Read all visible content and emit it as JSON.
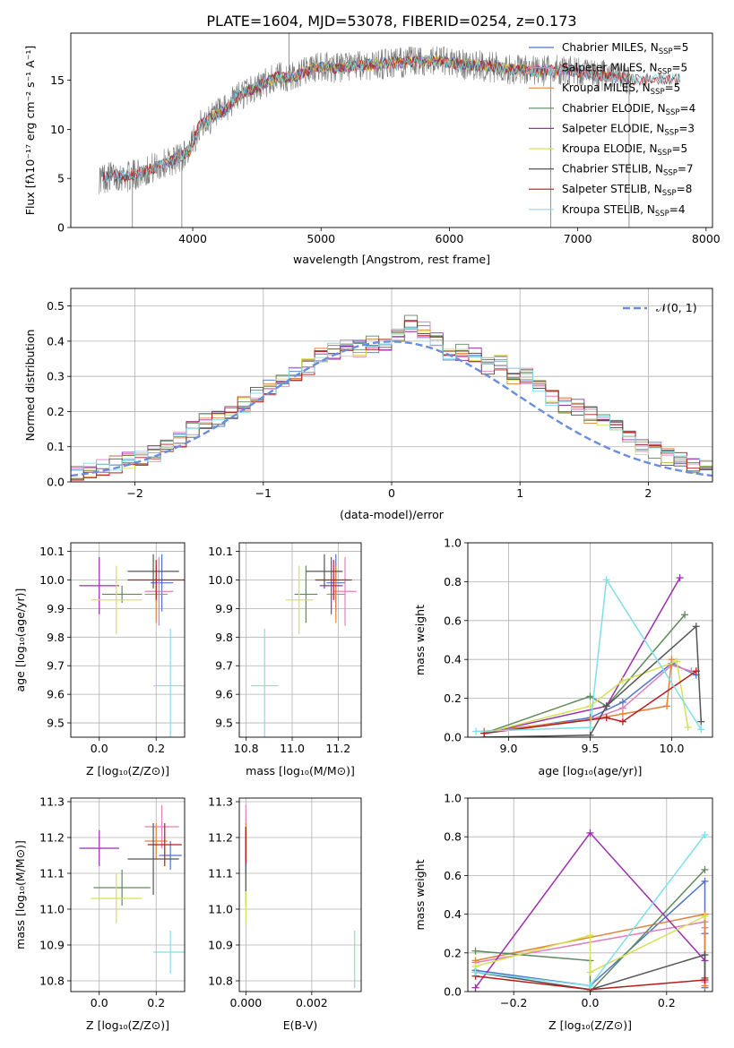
{
  "figure": {
    "title": "PLATE=1604, MJD=53078, FIBERID=0254, z=0.173"
  },
  "chart_data": [
    {
      "id": "spectrum",
      "type": "line",
      "xlabel": "wavelength [Angstrom, rest frame]",
      "ylabel": "Flux [fλ10⁻¹⁷ erg cm⁻² s⁻¹ A⁻¹]",
      "xlim": [
        3050,
        8050
      ],
      "ylim": [
        0,
        19.8
      ],
      "xticks": [
        4000,
        5000,
        6000,
        7000,
        8000
      ],
      "yticks": [
        0,
        5,
        10,
        15
      ],
      "grid": false,
      "legend_position": "top-right",
      "observed_envelope": {
        "x": [
          3270,
          3400,
          3500,
          3600,
          3700,
          3800,
          3900,
          3980,
          4050,
          4150,
          4250,
          4350,
          4450,
          4550,
          4650,
          4750,
          4850,
          4950,
          5050,
          5150,
          5300,
          5500,
          5700,
          5900,
          6100,
          6300,
          6500,
          6700,
          6900,
          7100,
          7300,
          7420
        ],
        "y": [
          5.0,
          5.3,
          5.2,
          5.6,
          6.1,
          6.6,
          7.2,
          7.9,
          10.3,
          11.2,
          11.9,
          13.4,
          14.0,
          14.6,
          15.3,
          15.2,
          15.7,
          16.3,
          16.4,
          16.2,
          16.5,
          16.7,
          16.9,
          17.0,
          16.6,
          16.4,
          16.1,
          15.9,
          16.1,
          15.6,
          15.3,
          15.1
        ]
      },
      "series": [
        {
          "name": "Chabrier MILES, N_SSP=5",
          "label_main": "Chabrier MILES, N",
          "label_sub": "SSP",
          "label_tail": "=5",
          "color": "#4f74c9",
          "x_range": [
            3300,
            7400
          ]
        },
        {
          "name": "Salpeter MILES, N_SSP=5",
          "label_main": "Salpeter MILES, N",
          "label_sub": "SSP",
          "label_tail": "=5",
          "color": "#e07fbd",
          "x_range": [
            3520,
            7400
          ]
        },
        {
          "name": "Kroupa MILES, N_SSP=5",
          "label_main": "Kroupa MILES, N",
          "label_sub": "SSP",
          "label_tail": "=5",
          "color": "#e0843c",
          "x_range": [
            3520,
            7400
          ]
        },
        {
          "name": "Chabrier ELODIE, N_SSP=4",
          "label_main": "Chabrier ELODIE, N",
          "label_sub": "SSP",
          "label_tail": "=4",
          "color": "#5f8a5b",
          "x_range": [
            3900,
            6800
          ]
        },
        {
          "name": "Salpeter ELODIE, N_SSP=3",
          "label_main": "Salpeter ELODIE, N",
          "label_sub": "SSP",
          "label_tail": "=3",
          "color": "#9b2fae",
          "x_range": [
            3900,
            6800
          ]
        },
        {
          "name": "Kroupa ELODIE, N_SSP=5",
          "label_main": "Kroupa ELODIE, N",
          "label_sub": "SSP",
          "label_tail": "=5",
          "color": "#d4e157",
          "x_range": [
            3900,
            6800
          ]
        },
        {
          "name": "Chabrier STELIB, N_SSP=7",
          "label_main": "Chabrier STELIB, N",
          "label_sub": "SSP",
          "label_tail": "=7",
          "color": "#555555",
          "x_range": [
            3300,
            7800
          ]
        },
        {
          "name": "Salpeter STELIB, N_SSP=8",
          "label_main": "Salpeter STELIB, N",
          "label_sub": "SSP",
          "label_tail": "=8",
          "color": "#b71c1c",
          "x_range": [
            3300,
            7800
          ]
        },
        {
          "name": "Kroupa STELIB, N_SSP=4",
          "label_main": "Kroupa STELIB, N",
          "label_sub": "SSP",
          "label_tail": "=4",
          "color": "#80deea",
          "x_range": [
            3300,
            7800
          ]
        }
      ]
    },
    {
      "id": "residuals",
      "type": "bar",
      "xlabel": "(data-model)/error",
      "ylabel": "Normed distribution",
      "xlim": [
        -2.5,
        2.5
      ],
      "ylim": [
        0,
        0.55
      ],
      "xticks": [
        -2,
        -1,
        0,
        1,
        2
      ],
      "yticks": [
        0.0,
        0.1,
        0.2,
        0.3,
        0.4,
        0.5
      ],
      "grid": true,
      "legend_position": "top-right",
      "reference": {
        "name": "𝒩(0, 1)",
        "color": "#6a8de0",
        "mu": 0,
        "sigma": 1
      },
      "bin_edges_start": -2.5,
      "bin_width": 0.1,
      "approx_values": [
        0.02,
        0.03,
        0.04,
        0.05,
        0.06,
        0.07,
        0.08,
        0.1,
        0.12,
        0.15,
        0.17,
        0.18,
        0.2,
        0.22,
        0.25,
        0.27,
        0.29,
        0.31,
        0.33,
        0.36,
        0.37,
        0.38,
        0.38,
        0.39,
        0.39,
        0.42,
        0.45,
        0.43,
        0.4,
        0.37,
        0.37,
        0.36,
        0.33,
        0.34,
        0.3,
        0.3,
        0.27,
        0.24,
        0.22,
        0.21,
        0.19,
        0.17,
        0.15,
        0.13,
        0.1,
        0.09,
        0.07,
        0.06,
        0.05,
        0.04
      ]
    },
    {
      "id": "age_vs_Z",
      "type": "scatter",
      "xlabel": "Z [log₁₀(Z/Z⊙)]",
      "ylabel": "age  [log₁₀(age/yr)]",
      "xlim": [
        -0.1,
        0.3
      ],
      "ylim": [
        9.45,
        10.13
      ],
      "xticks": [
        0.0,
        0.2
      ],
      "yticks": [
        9.5,
        9.6,
        9.7,
        9.8,
        9.9,
        10.0,
        10.1
      ],
      "grid": true,
      "points": [
        {
          "x": 0.22,
          "y": 9.99,
          "dx": 0.04,
          "dy": 0.1,
          "color": "#4f74c9"
        },
        {
          "x": 0.21,
          "y": 9.96,
          "dx": 0.05,
          "dy": 0.12,
          "color": "#e07fbd"
        },
        {
          "x": 0.2,
          "y": 9.95,
          "dx": 0.04,
          "dy": 0.1,
          "color": "#e0843c"
        },
        {
          "x": 0.08,
          "y": 9.95,
          "dx": 0.07,
          "dy": 0.03,
          "color": "#5f8a5b"
        },
        {
          "x": 0.0,
          "y": 9.98,
          "dx": 0.07,
          "dy": 0.1,
          "color": "#9b2fae"
        },
        {
          "x": 0.06,
          "y": 9.93,
          "dx": 0.09,
          "dy": 0.12,
          "color": "#d4e157"
        },
        {
          "x": 0.19,
          "y": 10.03,
          "dx": 0.09,
          "dy": 0.06,
          "color": "#555555"
        },
        {
          "x": 0.2,
          "y": 10.0,
          "dx": 0.1,
          "dy": 0.07,
          "color": "#b71c1c"
        },
        {
          "x": 0.25,
          "y": 9.63,
          "dx": 0.06,
          "dy": 0.2,
          "color": "#80deea"
        }
      ]
    },
    {
      "id": "age_vs_mass",
      "type": "scatter",
      "xlabel": "mass [log₁₀(M/M⊙)]",
      "ylabel": "",
      "xlim": [
        10.77,
        11.3
      ],
      "ylim": [
        9.45,
        10.13
      ],
      "xticks": [
        10.8,
        11.0,
        11.2
      ],
      "yticks": [
        9.5,
        9.6,
        9.7,
        9.8,
        9.9,
        10.0,
        10.1
      ],
      "grid": true,
      "points": [
        {
          "x": 11.19,
          "y": 9.99,
          "dx": 0.04,
          "dy": 0.1,
          "color": "#4f74c9"
        },
        {
          "x": 11.23,
          "y": 9.96,
          "dx": 0.05,
          "dy": 0.12,
          "color": "#e07fbd"
        },
        {
          "x": 11.19,
          "y": 9.95,
          "dx": 0.04,
          "dy": 0.1,
          "color": "#e0843c"
        },
        {
          "x": 11.06,
          "y": 9.95,
          "dx": 0.05,
          "dy": 0.1,
          "color": "#5f8a5b"
        },
        {
          "x": 11.17,
          "y": 9.98,
          "dx": 0.05,
          "dy": 0.1,
          "color": "#9b2fae"
        },
        {
          "x": 11.03,
          "y": 9.93,
          "dx": 0.06,
          "dy": 0.12,
          "color": "#d4e157"
        },
        {
          "x": 11.14,
          "y": 10.03,
          "dx": 0.08,
          "dy": 0.06,
          "color": "#555555"
        },
        {
          "x": 11.18,
          "y": 10.0,
          "dx": 0.08,
          "dy": 0.07,
          "color": "#b71c1c"
        },
        {
          "x": 10.88,
          "y": 9.63,
          "dx": 0.06,
          "dy": 0.2,
          "color": "#80deea"
        }
      ]
    },
    {
      "id": "weight_vs_age",
      "type": "line",
      "xlabel": "age  [log₁₀(age/yr)]",
      "ylabel": "mass weight",
      "xlim": [
        8.75,
        10.25
      ],
      "ylim": [
        0,
        1.0
      ],
      "xticks": [
        9.0,
        9.5,
        10.0
      ],
      "yticks": [
        0.0,
        0.2,
        0.4,
        0.6,
        0.8,
        1.0
      ],
      "grid": true,
      "series": [
        {
          "color": "#4f74c9",
          "x": [
            8.85,
            9.5,
            9.7,
            10.0,
            10.15
          ],
          "y": [
            0.02,
            0.1,
            0.18,
            0.38,
            0.32
          ]
        },
        {
          "color": "#e07fbd",
          "x": [
            8.85,
            9.5,
            9.7,
            10.0,
            10.12
          ],
          "y": [
            0.03,
            0.09,
            0.15,
            0.37,
            0.34
          ]
        },
        {
          "color": "#e0843c",
          "x": [
            8.85,
            9.5,
            9.7,
            9.97,
            10.0
          ],
          "y": [
            0.03,
            0.09,
            0.12,
            0.16,
            0.4
          ]
        },
        {
          "color": "#5f8a5b",
          "x": [
            8.85,
            9.5,
            9.6,
            10.08
          ],
          "y": [
            0.02,
            0.21,
            0.16,
            0.63
          ]
        },
        {
          "color": "#9b2fae",
          "x": [
            8.85,
            9.6,
            10.05
          ],
          "y": [
            0.02,
            0.16,
            0.82
          ]
        },
        {
          "color": "#d4e157",
          "x": [
            8.85,
            9.5,
            9.7,
            10.03,
            10.1
          ],
          "y": [
            0.02,
            0.16,
            0.29,
            0.39,
            0.05
          ]
        },
        {
          "color": "#555555",
          "x": [
            8.85,
            9.5,
            9.6,
            10.15,
            10.18
          ],
          "y": [
            0.0,
            0.01,
            0.16,
            0.57,
            0.08
          ]
        },
        {
          "color": "#b71c1c",
          "x": [
            8.85,
            9.6,
            9.7,
            10.15
          ],
          "y": [
            0.02,
            0.1,
            0.08,
            0.34
          ]
        },
        {
          "color": "#80deea",
          "x": [
            8.8,
            9.5,
            9.6,
            10.18
          ],
          "y": [
            0.03,
            0.05,
            0.81,
            0.04
          ]
        }
      ]
    },
    {
      "id": "mass_vs_Z",
      "type": "scatter",
      "xlabel": "Z [log₁₀(Z/Z⊙)]",
      "ylabel": "mass [log₁₀(M/M⊙)]",
      "xlim": [
        -0.1,
        0.3
      ],
      "ylim": [
        10.77,
        11.31
      ],
      "xticks": [
        0.0,
        0.2
      ],
      "yticks": [
        10.8,
        10.9,
        11.0,
        11.1,
        11.2,
        11.3
      ],
      "grid": true,
      "points": [
        {
          "x": 0.25,
          "y": 11.15,
          "dx": 0.04,
          "dy": 0.04,
          "color": "#4f74c9"
        },
        {
          "x": 0.22,
          "y": 11.23,
          "dx": 0.06,
          "dy": 0.06,
          "color": "#e07fbd"
        },
        {
          "x": 0.2,
          "y": 11.19,
          "dx": 0.04,
          "dy": 0.05,
          "color": "#e0843c"
        },
        {
          "x": 0.08,
          "y": 11.06,
          "dx": 0.1,
          "dy": 0.05,
          "color": "#5f8a5b"
        },
        {
          "x": 0.0,
          "y": 11.17,
          "dx": 0.07,
          "dy": 0.05,
          "color": "#9b2fae"
        },
        {
          "x": 0.06,
          "y": 11.03,
          "dx": 0.09,
          "dy": 0.07,
          "color": "#d4e157"
        },
        {
          "x": 0.19,
          "y": 11.14,
          "dx": 0.09,
          "dy": 0.1,
          "color": "#555555"
        },
        {
          "x": 0.23,
          "y": 11.18,
          "dx": 0.06,
          "dy": 0.06,
          "color": "#b71c1c"
        },
        {
          "x": 0.25,
          "y": 10.88,
          "dx": 0.06,
          "dy": 0.06,
          "color": "#80deea"
        }
      ]
    },
    {
      "id": "mass_vs_ebv",
      "type": "scatter",
      "xlabel": "E(B-V)",
      "ylabel": "",
      "xlim": [
        -0.0002,
        0.0035
      ],
      "ylim": [
        10.77,
        11.31
      ],
      "xticks": [
        0.0,
        0.002
      ],
      "xtick_labels": [
        "0.000",
        "0.002"
      ],
      "yticks": [
        10.8,
        10.9,
        11.0,
        11.1,
        11.2,
        11.3
      ],
      "grid": true,
      "points": [
        {
          "x": 0.0,
          "y": 11.16,
          "dx": 0.0,
          "dy": 0.06,
          "color": "#4f74c9"
        },
        {
          "x": 0.0,
          "y": 11.23,
          "dx": 0.0,
          "dy": 0.06,
          "color": "#e07fbd"
        },
        {
          "x": 0.0,
          "y": 11.19,
          "dx": 0.0,
          "dy": 0.05,
          "color": "#e0843c"
        },
        {
          "x": 0.0,
          "y": 11.06,
          "dx": 0.0,
          "dy": 0.05,
          "color": "#5f8a5b"
        },
        {
          "x": 0.0,
          "y": 11.17,
          "dx": 0.0,
          "dy": 0.05,
          "color": "#9b2fae"
        },
        {
          "x": 0.0,
          "y": 11.03,
          "dx": 0.0,
          "dy": 0.07,
          "color": "#d4e157"
        },
        {
          "x": 0.0,
          "y": 11.14,
          "dx": 0.0,
          "dy": 0.09,
          "color": "#555555"
        },
        {
          "x": 0.0,
          "y": 11.18,
          "dx": 0.0,
          "dy": 0.05,
          "color": "#b71c1c"
        },
        {
          "x": 0.0033,
          "y": 10.86,
          "dx": 0.0,
          "dy": 0.08,
          "color": "#80deea"
        }
      ]
    },
    {
      "id": "weight_vs_Z",
      "type": "line",
      "xlabel": "Z [log₁₀(Z/Z⊙)]",
      "ylabel": "mass weight",
      "xlim": [
        -0.32,
        0.32
      ],
      "ylim": [
        0,
        1.0
      ],
      "xticks": [
        -0.2,
        0.0,
        0.2
      ],
      "yticks": [
        0.0,
        0.2,
        0.4,
        0.6,
        0.8,
        1.0
      ],
      "grid": true,
      "series": [
        {
          "color": "#4f74c9",
          "x": [
            -0.3,
            0.0,
            0.3,
            0.3,
            0.3
          ],
          "y": [
            0.11,
            0.03,
            0.57,
            0.3,
            0.02
          ]
        },
        {
          "color": "#e07fbd",
          "x": [
            -0.3,
            0.3,
            0.3,
            0.3
          ],
          "y": [
            0.15,
            0.36,
            0.33,
            0.05
          ]
        },
        {
          "color": "#e0843c",
          "x": [
            -0.3,
            0.3,
            0.3
          ],
          "y": [
            0.16,
            0.4,
            0.03
          ]
        },
        {
          "color": "#5f8a5b",
          "x": [
            -0.3,
            0.0,
            0.0,
            0.3
          ],
          "y": [
            0.21,
            0.16,
            0.0,
            0.63
          ]
        },
        {
          "color": "#9b2fae",
          "x": [
            -0.3,
            0.0,
            0.3
          ],
          "y": [
            0.02,
            0.82,
            0.16
          ]
        },
        {
          "color": "#d4e157",
          "x": [
            -0.3,
            0.0,
            0.0,
            0.3
          ],
          "y": [
            0.13,
            0.29,
            0.1,
            0.39
          ]
        },
        {
          "color": "#555555",
          "x": [
            -0.3,
            0.0,
            0.3,
            0.3
          ],
          "y": [
            0.1,
            0.01,
            0.19,
            0.07
          ]
        },
        {
          "color": "#b71c1c",
          "x": [
            -0.3,
            0.0,
            0.3
          ],
          "y": [
            0.08,
            0.01,
            0.06
          ]
        },
        {
          "color": "#80deea",
          "x": [
            -0.3,
            0.0,
            0.3
          ],
          "y": [
            0.1,
            0.03,
            0.81
          ]
        }
      ]
    }
  ]
}
